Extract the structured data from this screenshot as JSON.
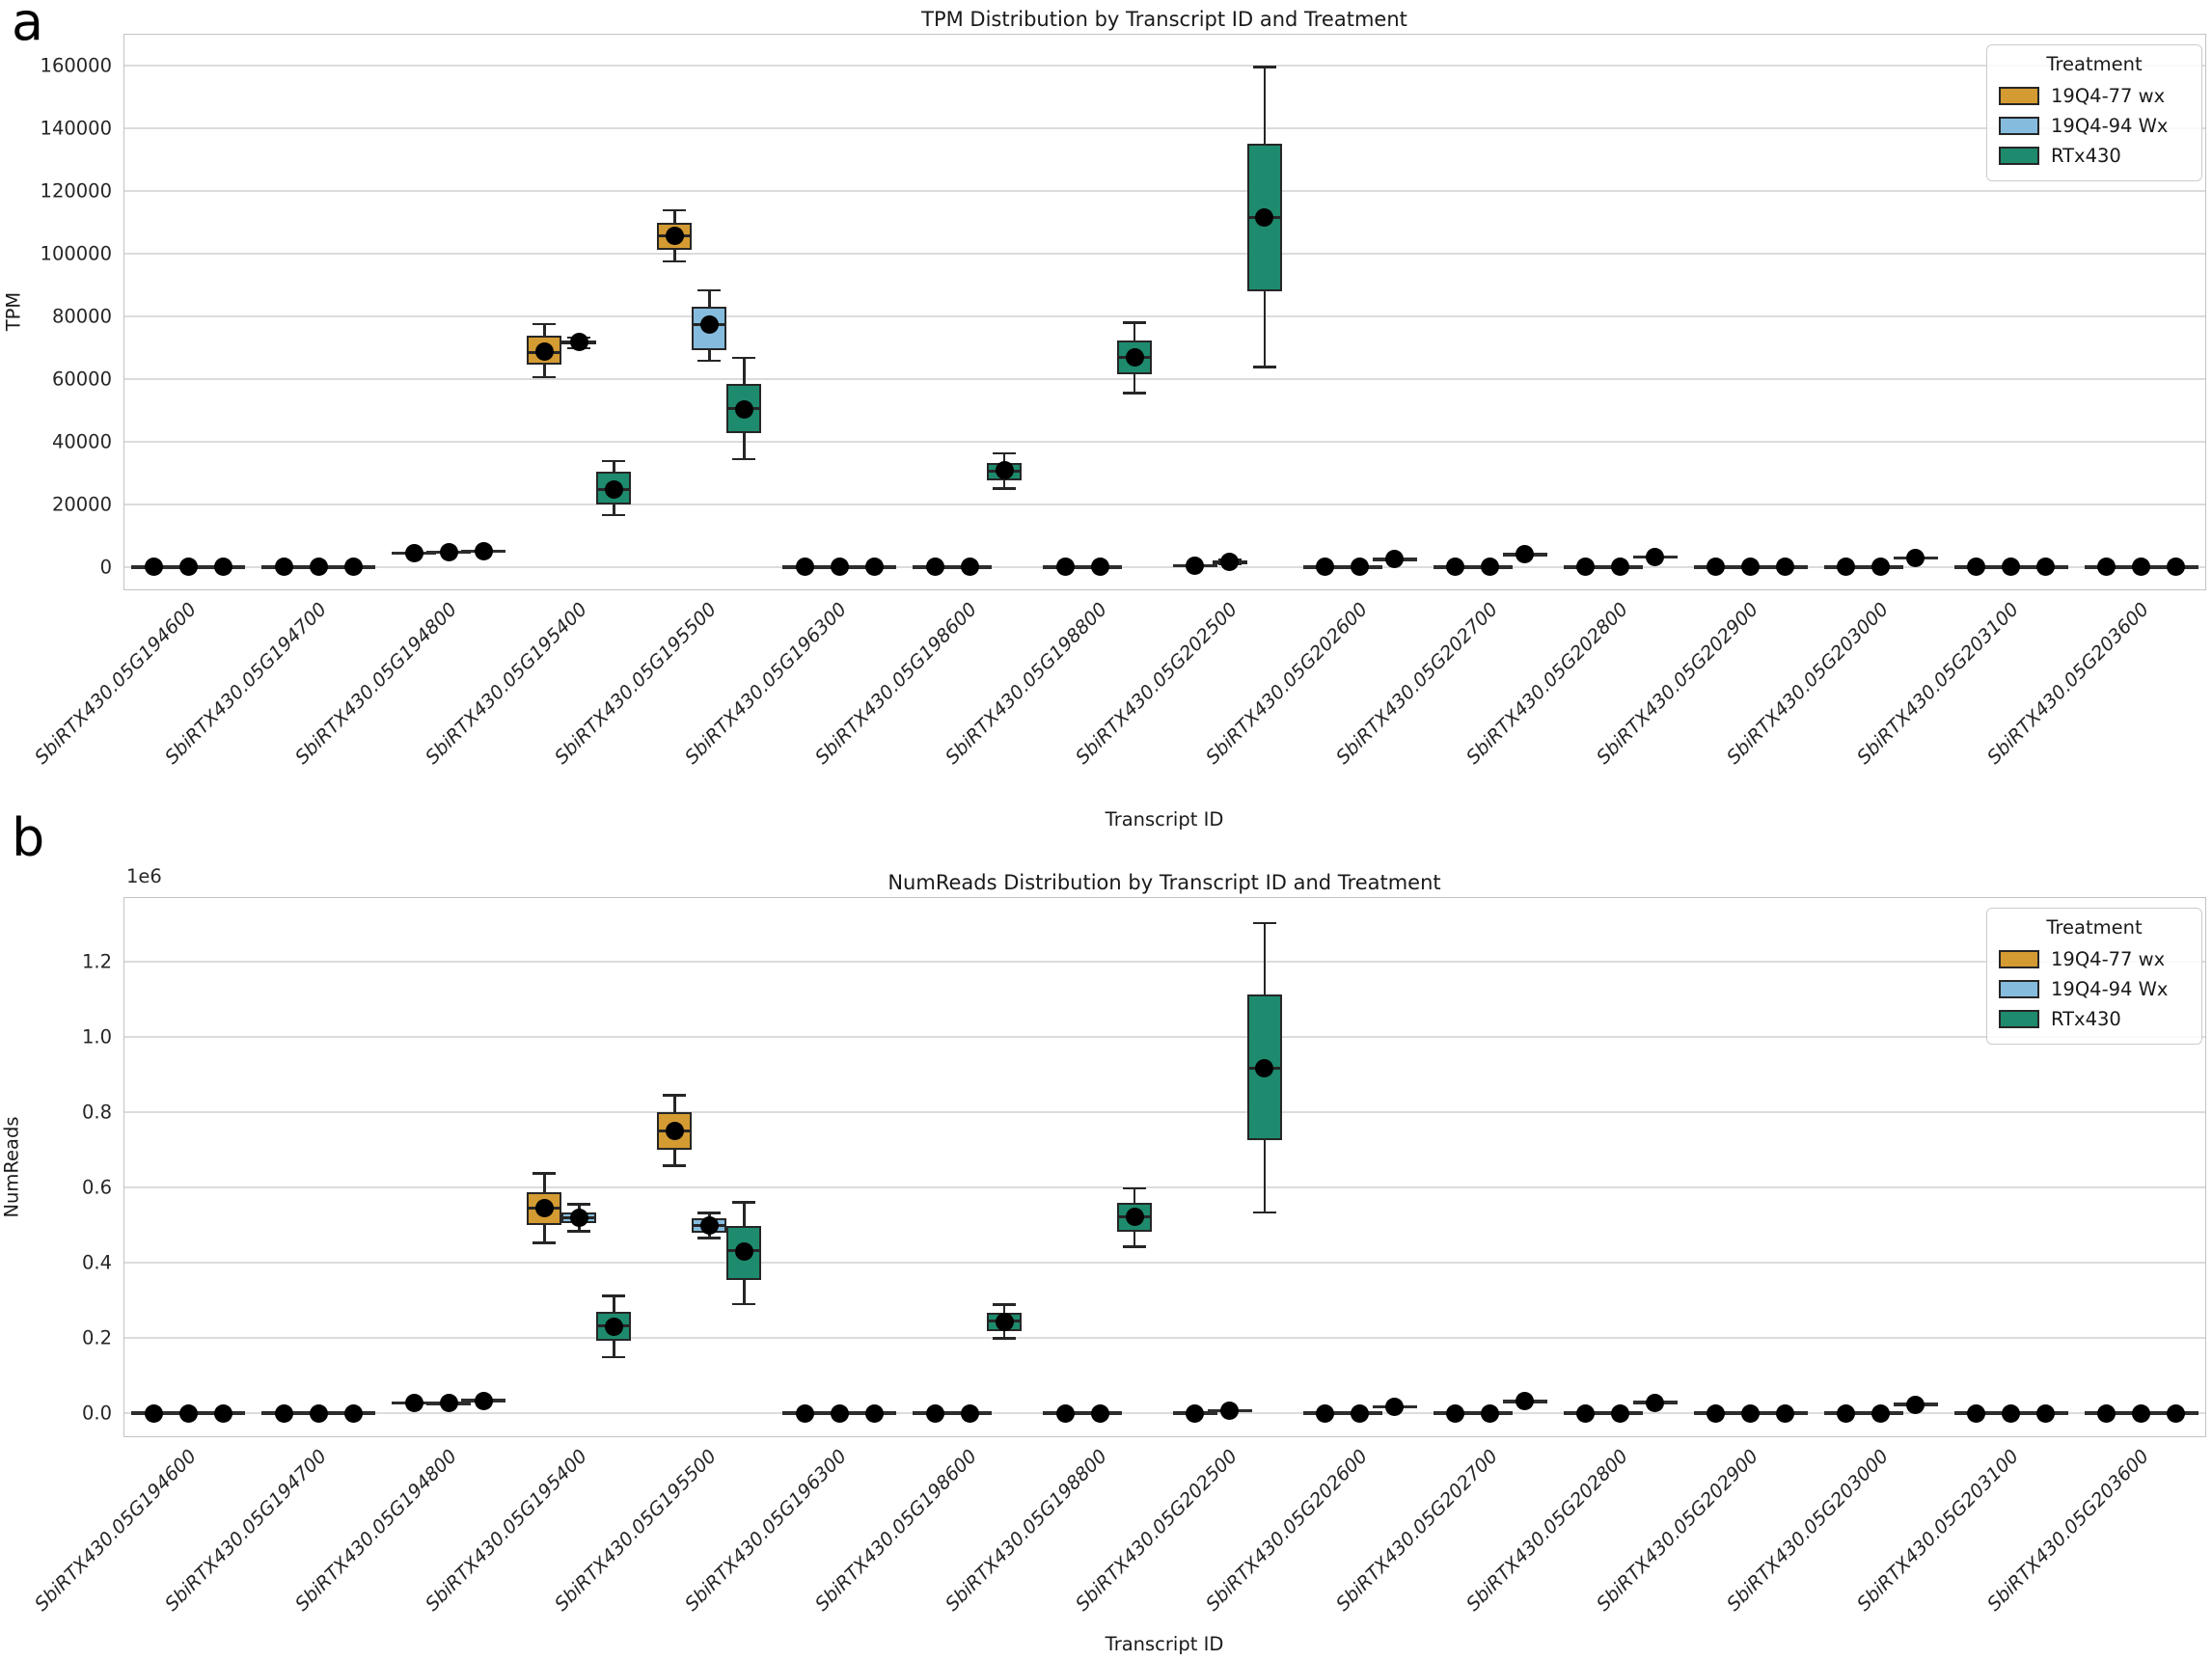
{
  "colors": {
    "treatment_orange": "#D49B32",
    "treatment_blue": "#85BCDE",
    "treatment_green": "#1E8B6E",
    "box_edge": "#262626",
    "mean_dot": "#000000",
    "gridline": "#dcdcdc",
    "spine": "#c3c3c3"
  },
  "legend": {
    "title": "Treatment",
    "entries": [
      {
        "label": "19Q4-77 wx",
        "color": "#D49B32"
      },
      {
        "label": "19Q4-94 Wx",
        "color": "#85BCDE"
      },
      {
        "label": "RTx430",
        "color": "#1E8B6E"
      }
    ]
  },
  "categories": [
    "SbiRTX430.05G194600",
    "SbiRTX430.05G194700",
    "SbiRTX430.05G194800",
    "SbiRTX430.05G195400",
    "SbiRTX430.05G195500",
    "SbiRTX430.05G196300",
    "SbiRTX430.05G198600",
    "SbiRTX430.05G198800",
    "SbiRTX430.05G202500",
    "SbiRTX430.05G202600",
    "SbiRTX430.05G202700",
    "SbiRTX430.05G202800",
    "SbiRTX430.05G202900",
    "SbiRTX430.05G203000",
    "SbiRTX430.05G203100",
    "SbiRTX430.05G203600"
  ],
  "treatments": [
    "19Q4-77 wx",
    "19Q4-94 Wx",
    "RTx430"
  ],
  "chart_data": [
    {
      "type": "box",
      "panel_label": "a",
      "title": "TPM Distribution by Transcript ID and Treatment",
      "xlabel": "Transcript ID",
      "ylabel": "TPM",
      "offset_text": "",
      "legend_position": "upper right",
      "grid": true,
      "ylim": [
        -7400,
        170150
      ],
      "ytick_values": [
        0,
        20000,
        40000,
        60000,
        80000,
        100000,
        120000,
        140000,
        160000
      ],
      "ytick_labels": [
        "0",
        "20000",
        "40000",
        "60000",
        "80000",
        "100000",
        "120000",
        "140000",
        "160000"
      ],
      "values": [
        [
          0,
          0,
          0
        ],
        [
          0,
          0,
          0
        ],
        [
          4500,
          4700,
          5000
        ],
        [
          {
            "lo": 60600,
            "q1": 64600,
            "med": 68600,
            "q3": 73700,
            "hi": 77500,
            "mean": 68700
          },
          {
            "lo": 69800,
            "q1": 71000,
            "med": 71700,
            "q3": 72400,
            "hi": 73200,
            "mean": 71700
          },
          {
            "lo": 16600,
            "q1": 20000,
            "med": 24900,
            "q3": 30500,
            "hi": 33800,
            "mean": 24800
          }
        ],
        [
          {
            "lo": 97500,
            "q1": 101200,
            "med": 105800,
            "q3": 109800,
            "hi": 113800,
            "mean": 105600
          },
          {
            "lo": 65800,
            "q1": 69200,
            "med": 77500,
            "q3": 83000,
            "hi": 88300,
            "mean": 77300
          },
          {
            "lo": 34500,
            "q1": 42800,
            "med": 50500,
            "q3": 58500,
            "hi": 66800,
            "mean": 50300
          }
        ],
        [
          0,
          0,
          0
        ],
        [
          0,
          0,
          {
            "lo": 25000,
            "q1": 27600,
            "med": 30700,
            "q3": 33200,
            "hi": 36300,
            "mean": 30800
          }
        ],
        [
          0,
          0,
          {
            "lo": 55500,
            "q1": 61500,
            "med": 66900,
            "q3": 72300,
            "hi": 78000,
            "mean": 67000
          }
        ],
        [
          500,
          {
            "lo": 1100,
            "q1": 1500,
            "med": 1800,
            "q3": 2200,
            "hi": 2500,
            "mean": 1800
          },
          {
            "lo": 63800,
            "q1": 88000,
            "med": 111500,
            "q3": 135200,
            "hi": 159500,
            "mean": 111600
          }
        ],
        [
          0,
          0,
          2500
        ],
        [
          0,
          0,
          4000
        ],
        [
          0,
          0,
          3200
        ],
        [
          0,
          0,
          0
        ],
        [
          0,
          0,
          3000
        ],
        [
          0,
          0,
          0
        ],
        [
          0,
          0,
          0
        ]
      ]
    },
    {
      "type": "box",
      "panel_label": "b",
      "title": "NumReads Distribution by Transcript ID and Treatment",
      "xlabel": "Transcript ID",
      "ylabel": "NumReads",
      "offset_text": "1e6",
      "legend_position": "upper right",
      "grid": true,
      "ylim": [
        -64000,
        1372000
      ],
      "ytick_values": [
        0,
        200000,
        400000,
        600000,
        800000,
        1000000,
        1200000
      ],
      "ytick_labels": [
        "0.0",
        "0.2",
        "0.4",
        "0.6",
        "0.8",
        "1.0",
        "1.2"
      ],
      "values": [
        [
          0,
          0,
          0
        ],
        [
          0,
          0,
          0
        ],
        [
          27000,
          26000,
          33000
        ],
        [
          {
            "lo": 453000,
            "q1": 500000,
            "med": 545000,
            "q3": 587000,
            "hi": 638000,
            "mean": 544000
          },
          {
            "lo": 483000,
            "q1": 504000,
            "med": 519000,
            "q3": 534000,
            "hi": 555000,
            "mean": 519000
          },
          {
            "lo": 149000,
            "q1": 192000,
            "med": 231000,
            "q3": 269000,
            "hi": 312000,
            "mean": 230000
          }
        ],
        [
          {
            "lo": 658000,
            "q1": 700000,
            "med": 750000,
            "q3": 800000,
            "hi": 845000,
            "mean": 750000
          },
          {
            "lo": 466000,
            "q1": 479000,
            "med": 498000,
            "q3": 519000,
            "hi": 532000,
            "mean": 499000
          },
          {
            "lo": 290000,
            "q1": 355000,
            "med": 432000,
            "q3": 498000,
            "hi": 560000,
            "mean": 430000
          }
        ],
        [
          0,
          0,
          0
        ],
        [
          0,
          0,
          {
            "lo": 199000,
            "q1": 218000,
            "med": 244000,
            "q3": 268000,
            "hi": 288000,
            "mean": 243000
          }
        ],
        [
          0,
          0,
          {
            "lo": 443000,
            "q1": 482000,
            "med": 523000,
            "q3": 558000,
            "hi": 598000,
            "mean": 521000
          }
        ],
        [
          0,
          6000,
          {
            "lo": 533000,
            "q1": 727000,
            "med": 916000,
            "q3": 1112000,
            "hi": 1303000,
            "mean": 916000
          }
        ],
        [
          0,
          0,
          17000
        ],
        [
          0,
          0,
          31000
        ],
        [
          0,
          0,
          28000
        ],
        [
          0,
          0,
          0
        ],
        [
          0,
          0,
          23000
        ],
        [
          0,
          0,
          0
        ],
        [
          0,
          0,
          0
        ]
      ]
    }
  ]
}
